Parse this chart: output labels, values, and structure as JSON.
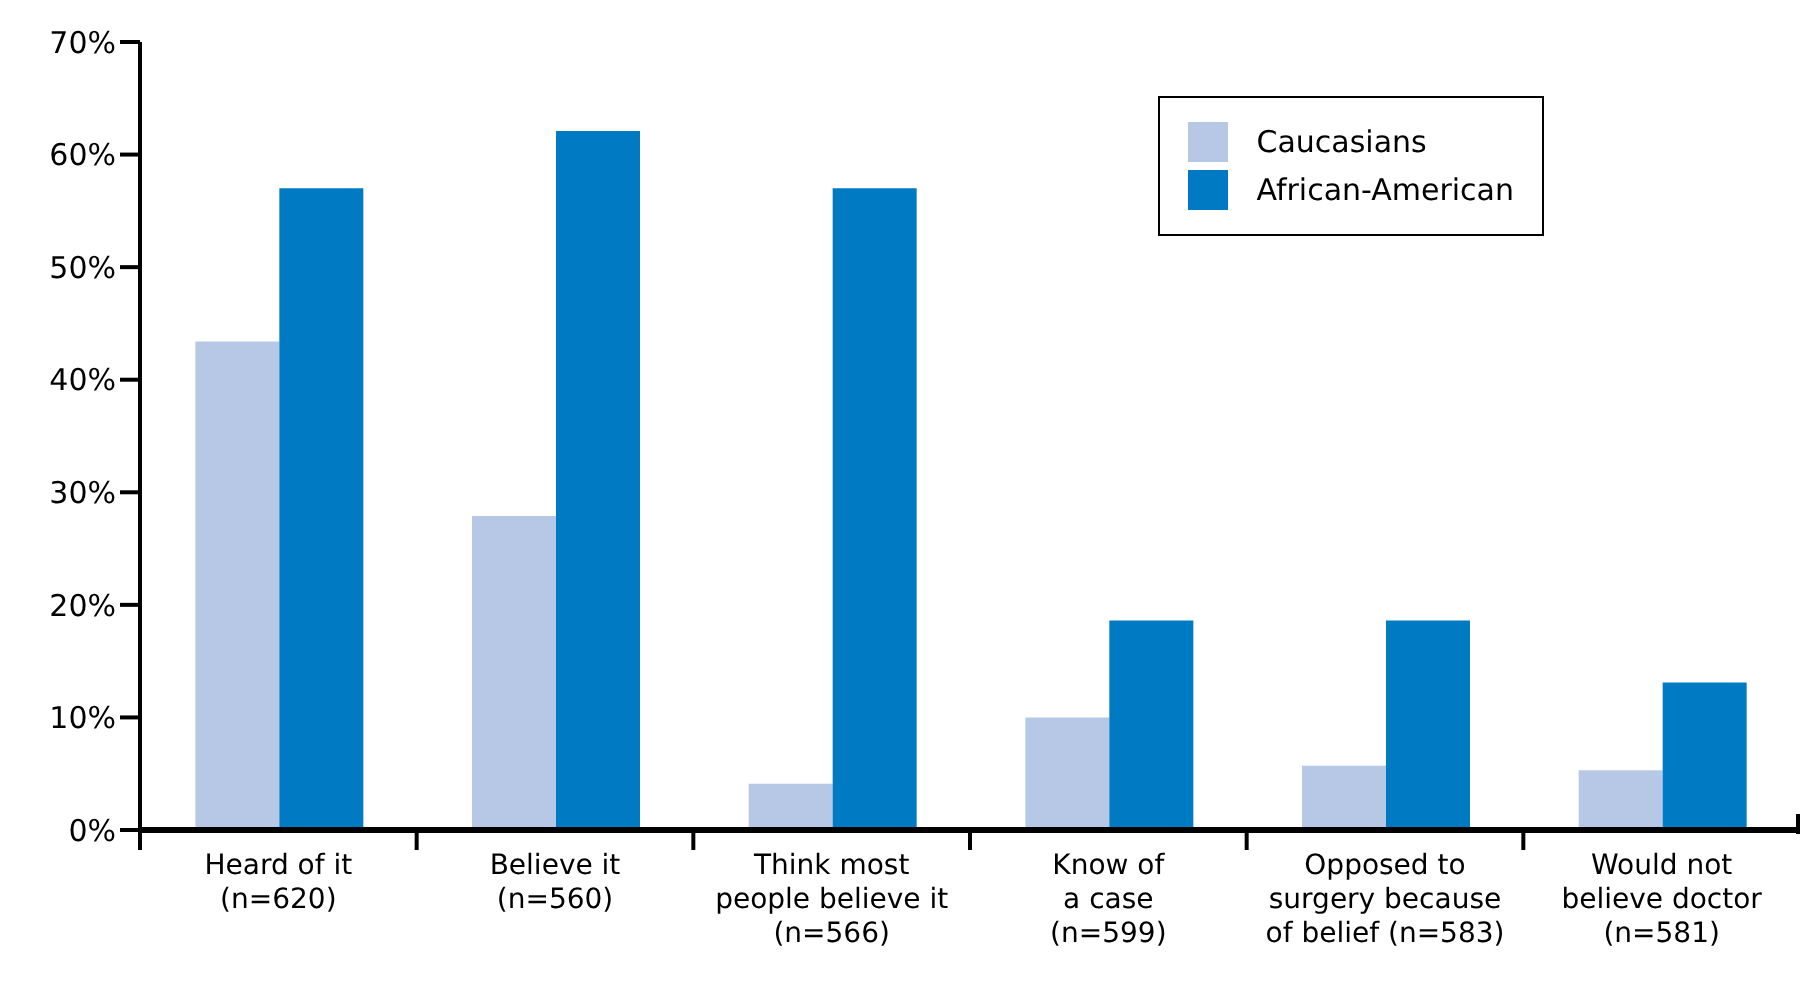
{
  "chart_data": {
    "type": "bar",
    "categories": [
      "Heard of it\n(n=620)",
      "Believe it\n(n=560)",
      "Think most\npeople believe it\n(n=566)",
      "Know of\na case\n(n=599)",
      "Opposed to\nsurgery because\nof belief (n=583)",
      "Would not\nbelieve doctor\n(n=581)"
    ],
    "series": [
      {
        "name": "Caucasians",
        "color": "#b7c8e6",
        "values": [
          43.4,
          27.9,
          4.1,
          10,
          5.7,
          5.3
        ]
      },
      {
        "name": "African-American",
        "color": "#007ac3",
        "values": [
          57,
          62.1,
          57,
          18.6,
          18.6,
          13.1
        ]
      }
    ],
    "ylim": [
      0,
      70
    ],
    "yticks": [
      {
        "value": 0,
        "label": "0%"
      },
      {
        "value": 10,
        "label": "10%"
      },
      {
        "value": 20,
        "label": "20%"
      },
      {
        "value": 30,
        "label": "30%"
      },
      {
        "value": 40,
        "label": "40%"
      },
      {
        "value": 50,
        "label": "50%"
      },
      {
        "value": 60,
        "label": "60%"
      },
      {
        "value": 70,
        "label": "70%"
      }
    ],
    "grid": false,
    "legend": "top right"
  }
}
